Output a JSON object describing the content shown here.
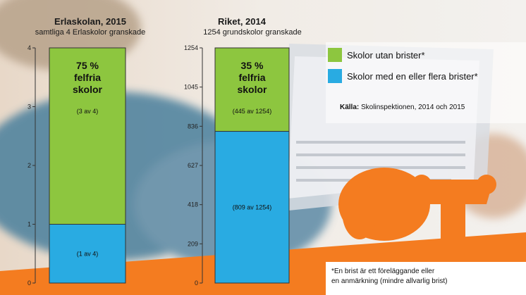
{
  "colors": {
    "green": "#8dc63f",
    "blue": "#29abe2",
    "orange": "#f47c20",
    "tablet": "#e6e8ec"
  },
  "legend": {
    "items": [
      {
        "label": "Skolor utan brister*",
        "color": "#8dc63f"
      },
      {
        "label": "Skolor med en eller flera brister*",
        "color": "#29abe2"
      }
    ]
  },
  "source": {
    "prefix": "Källa:",
    "text": " Skolinspektionen, 2014 och 2015"
  },
  "footnote": {
    "line1": "*En brist är ett föreläggande eller",
    "line2": "en anmärkning (mindre allvarlig brist)"
  },
  "chart_data": [
    {
      "type": "bar",
      "stacked": true,
      "title": "Erlaskolan, 2015",
      "subtitle": "samtliga 4 Erlaskolor granskade",
      "ylim": [
        0,
        4
      ],
      "yticks": [
        "0",
        "1",
        "2",
        "3",
        "4"
      ],
      "ytick_values": [
        0,
        1,
        2,
        3,
        4
      ],
      "series": [
        {
          "name": "Skolor med en eller flera brister*",
          "value": 1,
          "color": "#29abe2",
          "label": "(1 av 4)"
        },
        {
          "name": "Skolor utan brister*",
          "value": 3,
          "color": "#8dc63f",
          "label": "(3 av 4)"
        }
      ],
      "headline": [
        "75 %",
        "felfria",
        "skolor"
      ]
    },
    {
      "type": "bar",
      "stacked": true,
      "title": "Riket, 2014",
      "subtitle": "1254 grundskolor granskade",
      "ylim": [
        0,
        1254
      ],
      "yticks": [
        "0",
        "209",
        "418",
        "627",
        "836",
        "1045",
        "1254"
      ],
      "ytick_values": [
        0,
        209,
        418,
        627,
        836,
        1045,
        1254
      ],
      "series": [
        {
          "name": "Skolor med en eller flera brister*",
          "value": 809,
          "color": "#29abe2",
          "label": "(809 av 1254)"
        },
        {
          "name": "Skolor utan brister*",
          "value": 445,
          "color": "#8dc63f",
          "label": "(445 av 1254)"
        }
      ],
      "headline": [
        "35 %",
        "felfria",
        "skolor"
      ]
    }
  ]
}
